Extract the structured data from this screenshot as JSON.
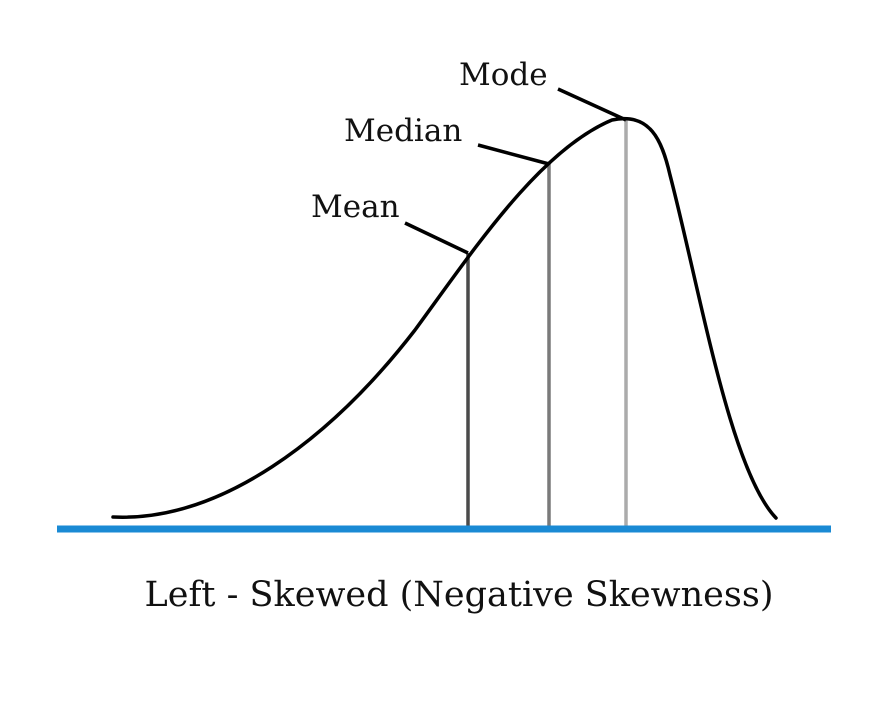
{
  "diagram": {
    "caption": "Left - Skewed (Negative Skewness)",
    "labels": {
      "mode": "Mode",
      "median": "Median",
      "mean": "Mean"
    },
    "colors": {
      "baseline": "#1a8ad4",
      "curve": "#000000",
      "mean_line": "#4a4a4a",
      "median_line": "#7a7a7a",
      "mode_line": "#ababab",
      "leader": "#000000"
    }
  }
}
